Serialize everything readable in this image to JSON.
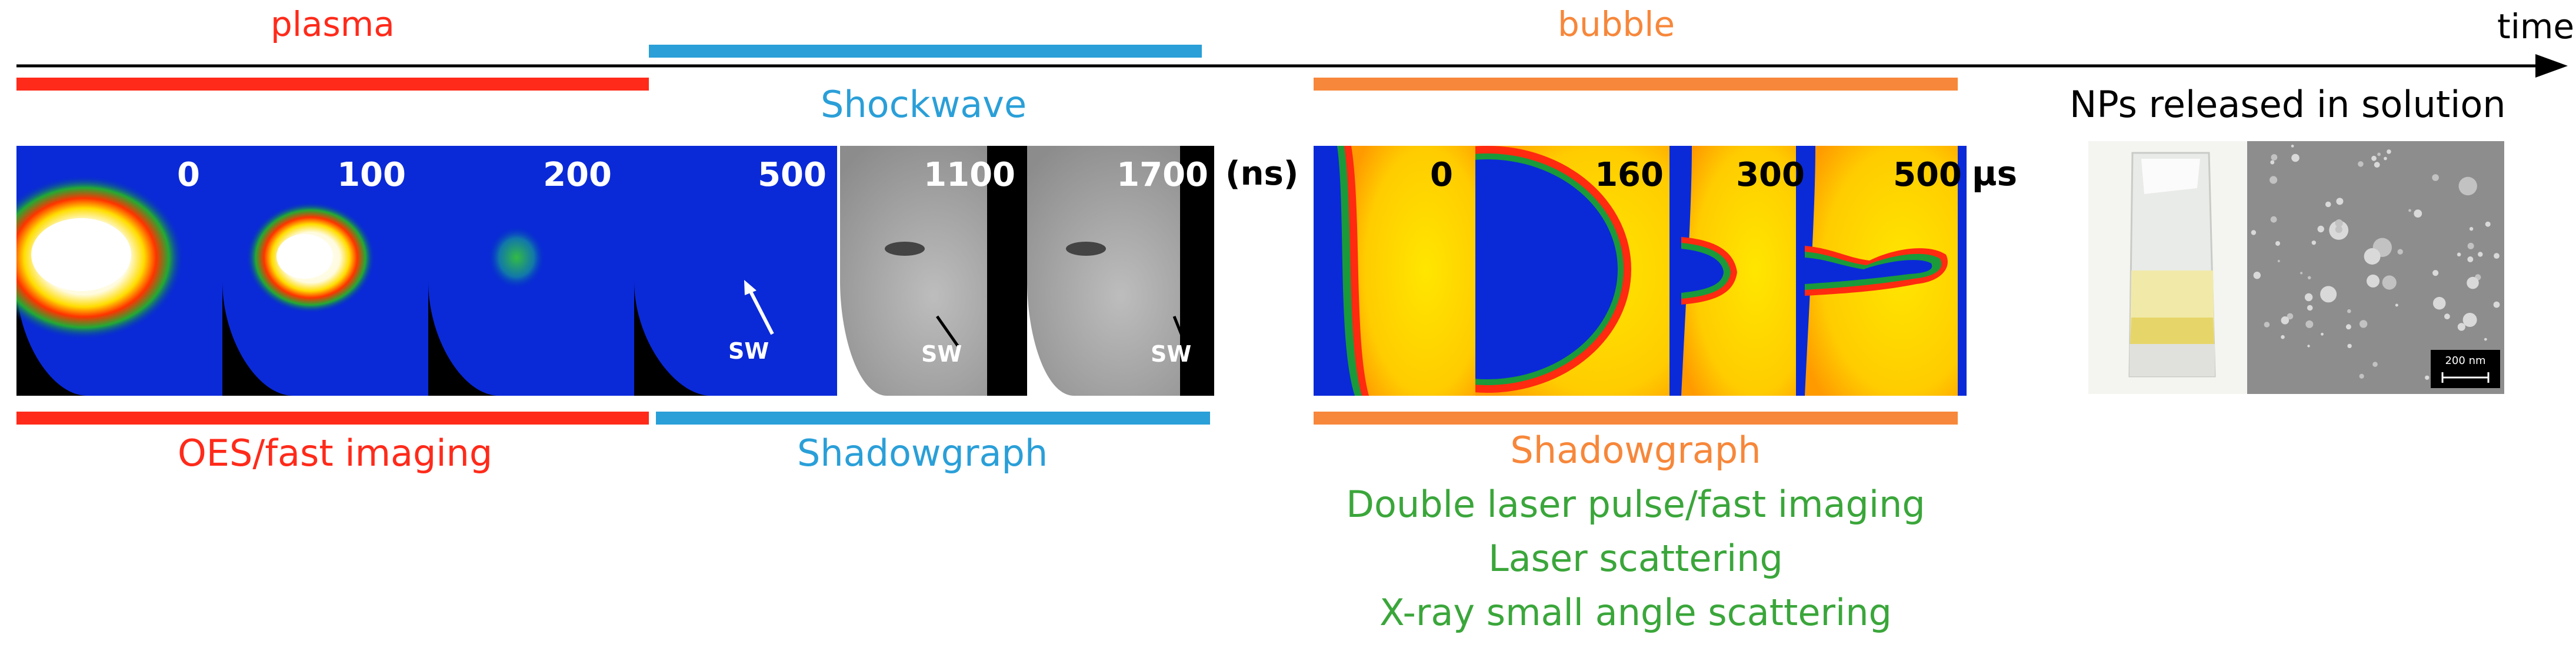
{
  "timeline": {
    "axis_label": "time"
  },
  "phases": {
    "plasma": {
      "label": "plasma",
      "color": "#ff2a1a"
    },
    "shockwave": {
      "label": "Shockwave",
      "color": "#2a9fd8"
    },
    "bubble": {
      "label": "bubble",
      "color": "#f7873a"
    },
    "nps": {
      "label": "NPs released in solution",
      "color": "#000000"
    }
  },
  "methods": {
    "plasma": "OES/fast imaging",
    "shockwave": "Shadowgraph",
    "bubble": [
      {
        "text": "Shadowgraph",
        "color": "#f7873a"
      },
      {
        "text": "Double laser pulse/fast imaging",
        "color": "#3aa63a"
      },
      {
        "text": "Laser scattering",
        "color": "#3aa63a"
      },
      {
        "text": "X-ray small angle scattering",
        "color": "#3aa63a"
      }
    ]
  },
  "ns_frames": {
    "labels": [
      "0",
      "100",
      "200",
      "500",
      "1100",
      "1700"
    ],
    "unit": "(ns)",
    "sw_label": "SW"
  },
  "us_frames": {
    "labels": [
      "0",
      "160",
      "300",
      "500"
    ],
    "unit": "µs"
  },
  "sem": {
    "scale_bar_label": "200 nm"
  }
}
